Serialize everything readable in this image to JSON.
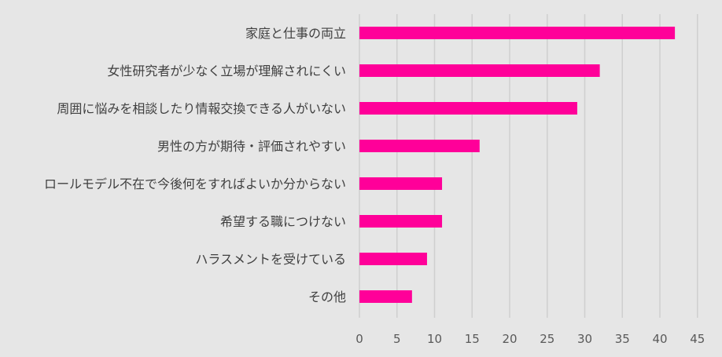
{
  "chart_data": {
    "type": "bar",
    "orientation": "horizontal",
    "title": "",
    "xlabel": "",
    "ylabel": "",
    "categories": [
      "家庭と仕事の両立",
      "女性研究者が少なく立場が理解されにくい",
      "周囲に悩みを相談したり情報交換できる人がいない",
      "男性の方が期待・評価されやすい",
      "ロールモデル不在で今後何をすればよいか分からない",
      "希望する職につけない",
      "ハラスメントを受けている",
      "その他"
    ],
    "values": [
      42,
      32,
      29,
      16,
      11,
      11,
      9,
      7
    ],
    "xlim": [
      0,
      45
    ],
    "x_ticks": [
      "0",
      "5",
      "10",
      "15",
      "20",
      "25",
      "30",
      "35",
      "40",
      "45"
    ],
    "grid": true,
    "legend": false,
    "bar_color": "#ff0099",
    "background_color": "#e6e6e6"
  }
}
